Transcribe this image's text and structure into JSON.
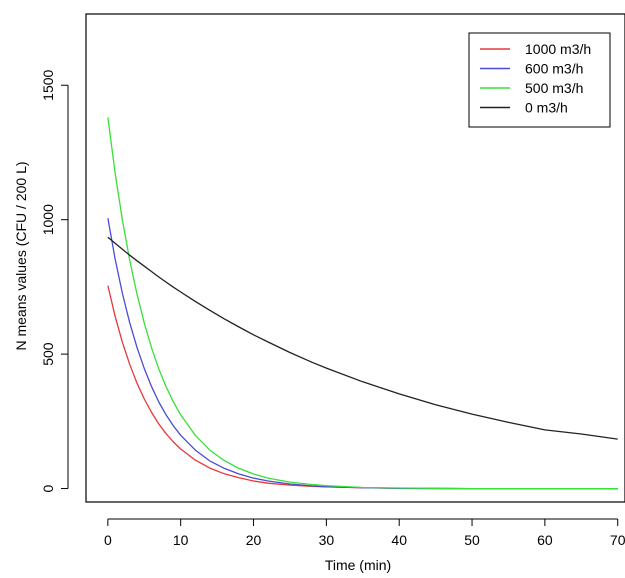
{
  "chart_data": {
    "type": "line",
    "title": "",
    "xlabel": "Time (min)",
    "ylabel": "N means values (CFU / 200 L)",
    "xlim": [
      -3,
      71
    ],
    "ylim": [
      -50,
      1765
    ],
    "xticks": [
      0,
      10,
      20,
      30,
      40,
      50,
      60,
      70
    ],
    "yticks": [
      0,
      500,
      1000,
      1500
    ],
    "x_tick_labels": [
      "0",
      "10",
      "20",
      "30",
      "40",
      "50",
      "60",
      "70"
    ],
    "y_tick_labels": [
      "0",
      "500",
      "1000",
      "1500"
    ],
    "grid": false,
    "legend_position": "top-right",
    "x": [
      0,
      1,
      2,
      3,
      4,
      5,
      6,
      7,
      8,
      9,
      10,
      12,
      14,
      16,
      18,
      20,
      22,
      25,
      28,
      30,
      35,
      40,
      45,
      50,
      55,
      60,
      65,
      70
    ],
    "series": [
      {
        "name": "1000 m3/h",
        "color": "#e8373b",
        "values": [
          755,
          641,
          544,
          462,
          392,
          333,
          283,
          240,
          204,
          173,
          147,
          106,
          76,
          55,
          40,
          28,
          20,
          13,
          8,
          6,
          3,
          1,
          1,
          0,
          0,
          0,
          0,
          0
        ]
      },
      {
        "name": "600 m3/h",
        "color": "#4b4bd6",
        "values": [
          1005,
          854,
          726,
          617,
          525,
          446,
          379,
          322,
          274,
          233,
          198,
          143,
          103,
          75,
          54,
          39,
          28,
          17,
          10,
          7,
          3,
          1,
          0,
          0,
          0,
          0,
          0,
          0
        ]
      },
      {
        "name": "500 m3/h",
        "color": "#37e037",
        "values": [
          1380,
          1174,
          999,
          850,
          723,
          615,
          523,
          445,
          379,
          322,
          274,
          198,
          143,
          104,
          75,
          54,
          39,
          24,
          15,
          11,
          4,
          2,
          1,
          0,
          0,
          0,
          0,
          0
        ]
      },
      {
        "name": "0 m3/h",
        "color": "#222222",
        "values": [
          935,
          912,
          890,
          868,
          847,
          827,
          807,
          787,
          768,
          749,
          731,
          696,
          663,
          631,
          601,
          572,
          545,
          506,
          470,
          448,
          397,
          352,
          312,
          277,
          246,
          218,
          203,
          184
        ]
      }
    ]
  }
}
